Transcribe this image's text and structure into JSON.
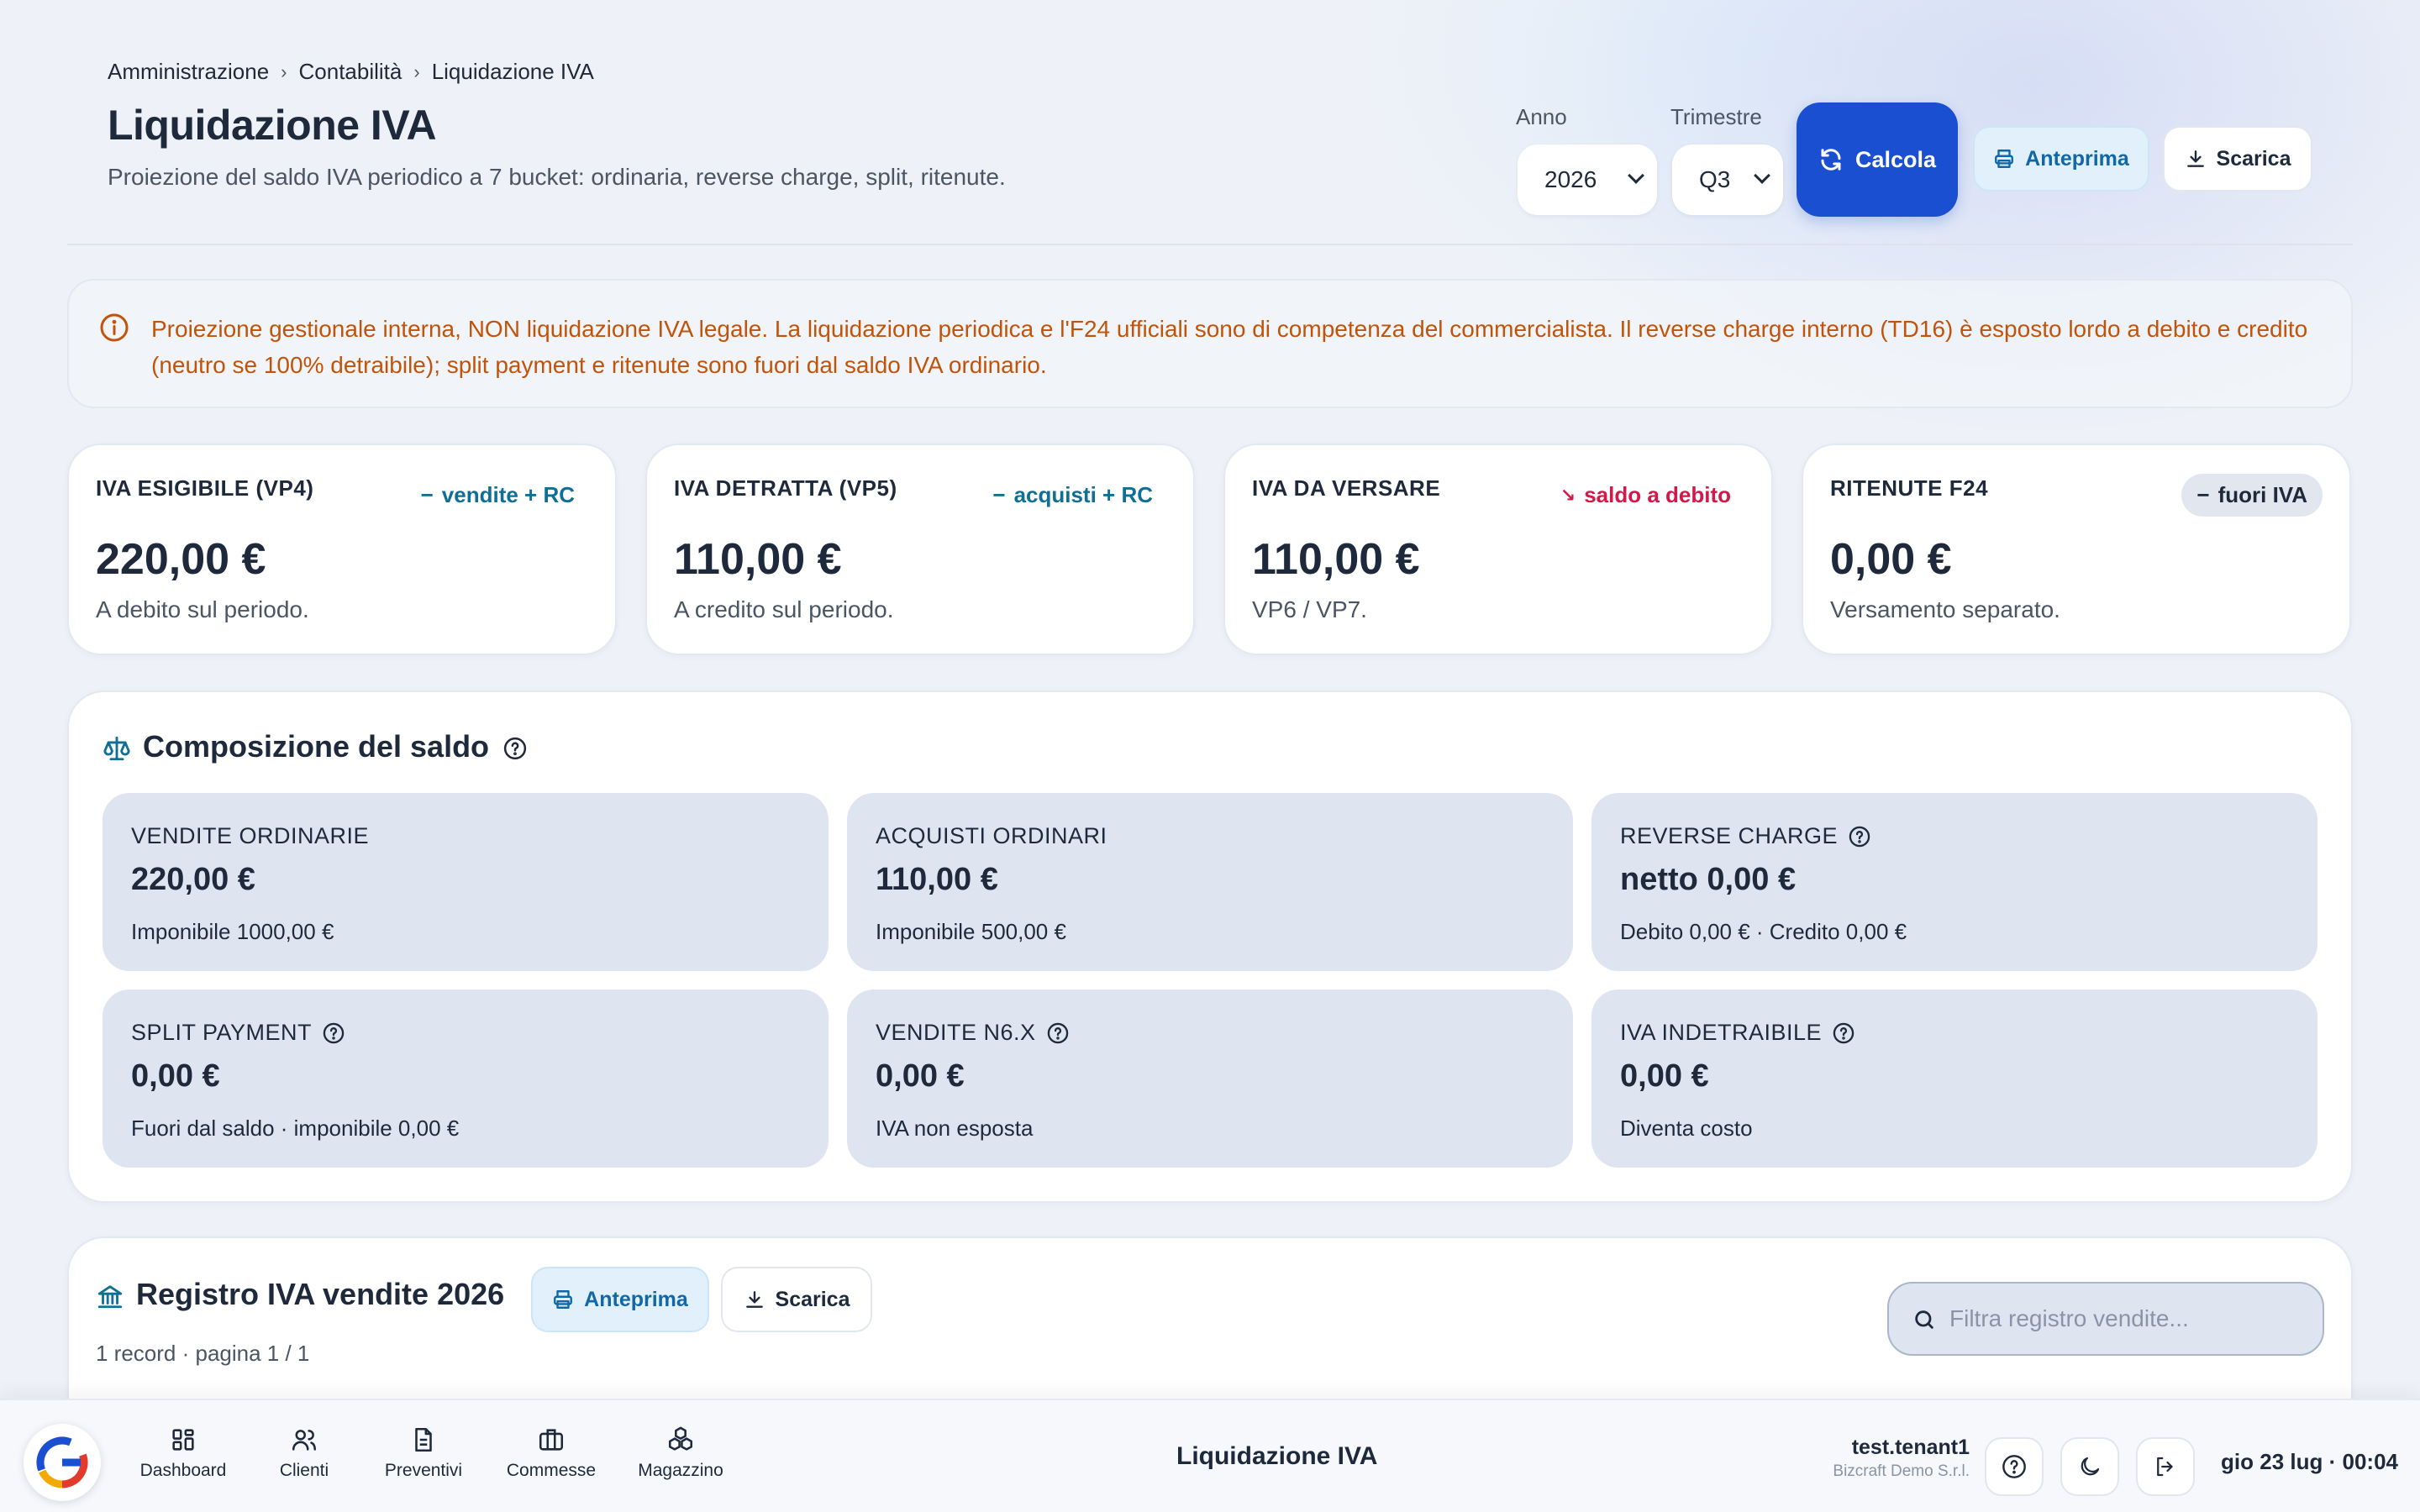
{
  "breadcrumb": [
    "Amministrazione",
    "Contabilità",
    "Liquidazione IVA"
  ],
  "header": {
    "title": "Liquidazione IVA",
    "subtitle": "Proiezione del saldo IVA periodico a 7 bucket: ordinaria, reverse charge, split, ritenute."
  },
  "filters": {
    "anno_label": "Anno",
    "anno_value": "2026",
    "trimestre_label": "Trimestre",
    "trimestre_value": "Q3"
  },
  "toolbar": {
    "calcola_label": "Calcola",
    "anteprima_label": "Anteprima",
    "scarica_label": "Scarica"
  },
  "alert": {
    "text": "Proiezione gestionale interna, NON liquidazione IVA legale. La liquidazione periodica e l'F24 ufficiali sono di competenza del commercialista. Il reverse charge interno (TD16) è esposto lordo a debito e credito (neutro se 100% detraibile); split payment e ritenute sono fuori dal saldo IVA ordinario.",
    "color": "#c2540a"
  },
  "kpis": [
    {
      "title": "IVA ESIGIBILE (VP4)",
      "trend": "vendite + RC",
      "value": "220,00 €",
      "desc": "A debito sul periodo."
    },
    {
      "title": "IVA DETRATTA (VP5)",
      "trend": "acquisti + RC",
      "value": "110,00 €",
      "desc": "A credito sul periodo."
    },
    {
      "title": "IVA DA VERSARE",
      "trend": "saldo a debito",
      "value": "110,00 €",
      "desc": "VP6 / VP7."
    },
    {
      "title": "RITENUTE F24",
      "trend": "fuori IVA",
      "value": "0,00 €",
      "desc": "Versamento separato."
    }
  ],
  "composizione": {
    "title": "Composizione del saldo",
    "tiles": [
      {
        "label": "VENDITE ORDINARIE",
        "value": "220,00 €",
        "desc": "Imponibile 1000,00 €"
      },
      {
        "label": "ACQUISTI ORDINARI",
        "value": "110,00 €",
        "desc": "Imponibile 500,00 €"
      },
      {
        "label": "REVERSE CHARGE",
        "value": "netto 0,00 €",
        "desc": "Debito 0,00 € · Credito 0,00 €"
      },
      {
        "label": "SPLIT PAYMENT",
        "value": "0,00 €",
        "desc": "Fuori dal saldo · imponibile 0,00 €"
      },
      {
        "label": "VENDITE N6.X",
        "value": "0,00 €",
        "desc": "IVA non esposta"
      },
      {
        "label": "IVA INDETRAIBILE",
        "value": "0,00 €",
        "desc": "Diventa costo"
      }
    ]
  },
  "registro": {
    "title": "Registro IVA vendite 2026",
    "anteprima_label": "Anteprima",
    "scarica_label": "Scarica",
    "meta": "1 record · pagina 1 / 1",
    "search_placeholder": "Filtra registro vendite..."
  },
  "bottombar": {
    "nav": [
      {
        "label": "Dashboard",
        "icon": "grid-icon"
      },
      {
        "label": "Clienti",
        "icon": "users-icon"
      },
      {
        "label": "Preventivi",
        "icon": "document-icon"
      },
      {
        "label": "Commesse",
        "icon": "briefcase-icon"
      },
      {
        "label": "Magazzino",
        "icon": "boxes-icon"
      }
    ],
    "title": "Liquidazione IVA",
    "user_name": "test.tenant1",
    "user_org": "Bizcraft Demo S.r.l.",
    "clock": "gio 23 lug · 00:04"
  },
  "colors": {
    "primary": "#1a4fd1",
    "teal": "#0f6f95",
    "danger": "#d11a4a"
  }
}
